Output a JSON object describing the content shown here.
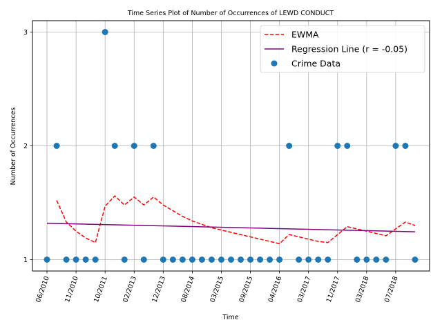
{
  "chart_data": {
    "type": "scatter",
    "title": "Time Series Plot of Number of Occurrences of LEWD CONDUCT",
    "xlabel": "Time",
    "ylabel": "Number of Occurrences",
    "xlim": [
      -1.5,
      39.5
    ],
    "ylim": [
      0.9,
      3.1
    ],
    "grid": true,
    "legend_position": "top-right",
    "x_tick_positions": [
      0,
      3,
      6,
      9,
      12,
      15,
      18,
      21,
      24,
      27,
      30,
      33,
      36
    ],
    "x_tick_labels": [
      "06/2010",
      "11/2010",
      "10/2011",
      "02/2013",
      "12/2013",
      "08/2014",
      "03/2015",
      "09/2015",
      "04/2016",
      "03/2017",
      "11/2017",
      "03/2018",
      "07/2018"
    ],
    "y_ticks": [
      1,
      2,
      3
    ],
    "series": [
      {
        "name": "EWMA",
        "kind": "line",
        "style": "dashed",
        "color": "#ff0000",
        "x": [
          1,
          2,
          3,
          4,
          5,
          6,
          7,
          8,
          9,
          10,
          11,
          12,
          13,
          14,
          15,
          16,
          17,
          18,
          19,
          20,
          21,
          22,
          23,
          24,
          25,
          26,
          27,
          28,
          29,
          30,
          31,
          32,
          33,
          34,
          35,
          36,
          37,
          38
        ],
        "y": [
          1.52,
          1.33,
          1.25,
          1.19,
          1.15,
          1.47,
          1.56,
          1.48,
          1.55,
          1.48,
          1.55,
          1.48,
          1.43,
          1.38,
          1.34,
          1.31,
          1.28,
          1.26,
          1.24,
          1.22,
          1.2,
          1.18,
          1.16,
          1.14,
          1.22,
          1.2,
          1.18,
          1.16,
          1.15,
          1.22,
          1.29,
          1.27,
          1.25,
          1.23,
          1.21,
          1.27,
          1.33,
          1.3
        ]
      },
      {
        "name": "Regression Line (r = -0.05)",
        "kind": "line",
        "style": "solid",
        "color": "#800080",
        "x": [
          0,
          38
        ],
        "y": [
          1.32,
          1.245
        ]
      },
      {
        "name": "Crime Data",
        "kind": "scatter",
        "color": "#1f77b4",
        "x": [
          0,
          1,
          2,
          3,
          4,
          5,
          6,
          7,
          8,
          9,
          10,
          11,
          12,
          13,
          14,
          15,
          16,
          17,
          18,
          19,
          20,
          21,
          22,
          23,
          24,
          25,
          26,
          27,
          28,
          29,
          30,
          31,
          32,
          33,
          34,
          35,
          36,
          37,
          38
        ],
        "y": [
          1,
          2,
          1,
          1,
          1,
          1,
          3,
          2,
          1,
          2,
          1,
          2,
          1,
          1,
          1,
          1,
          1,
          1,
          1,
          1,
          1,
          1,
          1,
          1,
          1,
          2,
          1,
          1,
          1,
          1,
          2,
          2,
          1,
          1,
          1,
          1,
          2,
          2,
          1
        ]
      }
    ]
  }
}
